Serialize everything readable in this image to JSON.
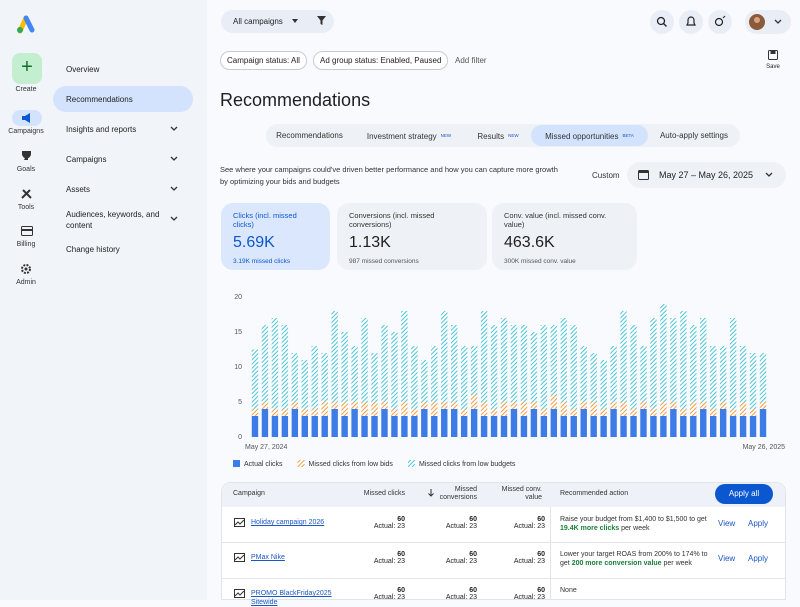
{
  "nav_rail": [
    "Create",
    "Campaigns",
    "Goals",
    "Tools",
    "Billing",
    "Admin"
  ],
  "nav_menu": [
    "Overview",
    "Recommendations",
    "Insights and reports",
    "Campaigns",
    "Assets",
    "Audiences, keywords, and content",
    "Change history"
  ],
  "toolbar": {
    "campaign_select": "All campaigns",
    "save": "Save"
  },
  "filters": [
    "Campaign status: All",
    "Ad group status: Enabled, Paused",
    "Add filter"
  ],
  "page_title": "Recommendations",
  "tabs": [
    {
      "label": "Recommendations"
    },
    {
      "label": "Investment strategy",
      "badge": "NEW"
    },
    {
      "label": "Results",
      "badge": "NEW"
    },
    {
      "label": "Missed opportunities",
      "badge": "BETA"
    },
    {
      "label": "Auto-apply settings"
    }
  ],
  "description": "See where your campaigns could've driven better performance and how you can capture more growth by optimizing your bids and budgets",
  "date_range": {
    "label": "Custom",
    "value": "May 27 – May 26, 2025"
  },
  "metrics": [
    {
      "label": "Clicks (incl. missed clicks)",
      "value": "5.69K",
      "sub": "3.19K missed clicks"
    },
    {
      "label": "Conversions (incl. missed conversions)",
      "value": "1.13K",
      "sub": "987 missed conversions"
    },
    {
      "label": "Conv. value (incl. missed conv. value)",
      "value": "463.6K",
      "sub": "300K missed conv. value"
    }
  ],
  "chart_data": {
    "type": "stacked_bar",
    "categories": [
      "May 27, 2024",
      null,
      null,
      null,
      null,
      null,
      null,
      null,
      null,
      null,
      null,
      null,
      null,
      null,
      null,
      null,
      null,
      null,
      null,
      null,
      null,
      null,
      null,
      null,
      null,
      null,
      null,
      null,
      null,
      null,
      null,
      null,
      null,
      null,
      null,
      null,
      null,
      null,
      null,
      null,
      null,
      null,
      null,
      null,
      null,
      null,
      null,
      null,
      null,
      null,
      null,
      "May 26, 2025"
    ],
    "series": [
      {
        "name": "Actual clicks",
        "color": "#3d7be6",
        "hatched": false,
        "values": [
          3,
          4,
          3,
          3,
          4,
          3,
          3,
          3,
          4,
          3,
          4,
          3,
          3,
          4,
          3,
          3,
          3,
          4,
          3,
          4,
          4,
          3,
          4,
          3,
          3,
          3,
          4,
          3,
          4,
          3,
          4,
          3,
          3,
          4,
          3,
          3,
          4,
          3,
          3,
          4,
          3,
          3,
          4,
          3,
          3,
          4,
          3,
          4,
          3,
          3,
          3,
          4
        ]
      },
      {
        "name": "Missed clicks from low bids",
        "color": "#f0963a",
        "hatched": true,
        "values": [
          1,
          1,
          1,
          1,
          1,
          1,
          1,
          2,
          1,
          2,
          1,
          2,
          2,
          1,
          1,
          2,
          1,
          1,
          2,
          1,
          1,
          1,
          2,
          2,
          1,
          2,
          1,
          2,
          1,
          1,
          2,
          2,
          1,
          1,
          2,
          1,
          1,
          2,
          1,
          1,
          1,
          2,
          1,
          1,
          2,
          1,
          1,
          1,
          1,
          2,
          1,
          1
        ]
      },
      {
        "name": "Missed clicks from low budgets",
        "color": "#3fc1d6",
        "hatched": true,
        "values": [
          8.5,
          11,
          13,
          12,
          7,
          7,
          9,
          7,
          13,
          10,
          8,
          12,
          7,
          11,
          11,
          13,
          9,
          6,
          8,
          13,
          11,
          9,
          7,
          13,
          12,
          12,
          11,
          11,
          10,
          12,
          10,
          12,
          12,
          8,
          7,
          7,
          8,
          13,
          12,
          8,
          13,
          14,
          12,
          14,
          11,
          12,
          9,
          8,
          13,
          8,
          8,
          7
        ]
      }
    ],
    "ylim": [
      0,
      20
    ],
    "yticks": [
      0,
      5,
      10,
      15,
      20
    ],
    "grid": false
  },
  "table": {
    "headers": [
      "Campaign",
      "Missed clicks",
      "Missed conversions",
      "Missed conv. value",
      "Recommended action"
    ],
    "apply_all": "Apply all",
    "rows": [
      {
        "campaign": "Holiday campaign 2026",
        "cells": [
          {
            "value": 60,
            "actual": "Actual: 23"
          },
          {
            "value": 60,
            "actual": "Actual: 23"
          },
          {
            "value": 60,
            "actual": "Actual: 23"
          }
        ],
        "action": [
          "Raise your budget from $1,400 to $1,500 to get ",
          "19.4K more clicks",
          " per week"
        ],
        "links": [
          "View",
          "Apply"
        ]
      },
      {
        "campaign": "PMax Nike",
        "cells": [
          {
            "value": 60,
            "actual": "Actual: 23"
          },
          {
            "value": 60,
            "actual": "Actual: 23"
          },
          {
            "value": 60,
            "actual": "Actual: 23"
          }
        ],
        "action": [
          "Lower your target ROAS from 200% to 174% to get ",
          "200 more conversion value",
          " per week"
        ],
        "links": [
          "View",
          "Apply"
        ]
      },
      {
        "campaign": "PROMO BlackFriday2025 Sitewide",
        "cells": [
          {
            "value": 60,
            "actual": "Actual: 23"
          },
          {
            "value": 60,
            "actual": "Actual: 23"
          },
          {
            "value": 60,
            "actual": "Actual: 23"
          }
        ],
        "action": [
          "None"
        ],
        "links": []
      }
    ]
  }
}
